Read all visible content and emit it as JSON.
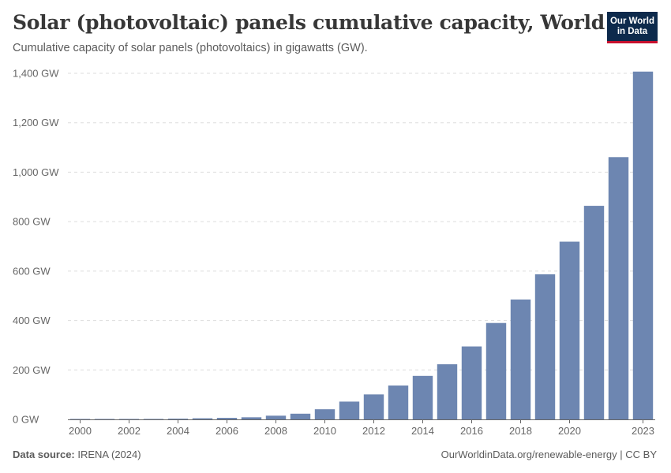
{
  "header": {
    "title": "Solar (photovoltaic) panels cumulative capacity, World",
    "subtitle": "Cumulative capacity of solar panels (photovoltaics) in gigawatts (GW)."
  },
  "logo": {
    "line1": "Our World",
    "line2": "in Data"
  },
  "footer": {
    "source_label": "Data source:",
    "source_value": "IRENA (2024)",
    "attribution": "OurWorldinData.org/renewable-energy | CC BY"
  },
  "colors": {
    "bar": "#6d86b1",
    "grid": "#dddddd",
    "axis": "#666666",
    "tick_text": "#666666"
  },
  "chart_data": {
    "type": "bar",
    "title": "Solar (photovoltaic) panels cumulative capacity, World",
    "xlabel": "",
    "ylabel": "",
    "categories": [
      2000,
      2001,
      2002,
      2003,
      2004,
      2005,
      2006,
      2007,
      2008,
      2009,
      2010,
      2011,
      2012,
      2013,
      2014,
      2015,
      2016,
      2017,
      2018,
      2019,
      2020,
      2021,
      2022,
      2023
    ],
    "values": [
      0.8,
      1.1,
      1.5,
      2.0,
      3.0,
      4.5,
      6.2,
      8.5,
      15,
      23,
      41,
      72,
      101,
      137,
      176,
      223,
      295,
      390,
      485,
      587,
      719,
      864,
      1061,
      1407
    ],
    "ylim": [
      0,
      1400
    ],
    "y_ticks": [
      0,
      200,
      400,
      600,
      800,
      1000,
      1200,
      1400
    ],
    "y_tick_labels": [
      "0 GW",
      "200 GW",
      "400 GW",
      "600 GW",
      "800 GW",
      "1,000 GW",
      "1,200 GW",
      "1,400 GW"
    ],
    "x_tick_labels": [
      "2000",
      "2002",
      "2004",
      "2006",
      "2008",
      "2010",
      "2012",
      "2014",
      "2016",
      "2018",
      "2020",
      "2023"
    ],
    "x_tick_years": [
      2000,
      2002,
      2004,
      2006,
      2008,
      2010,
      2012,
      2014,
      2016,
      2018,
      2020,
      2023
    ],
    "grid": true
  }
}
